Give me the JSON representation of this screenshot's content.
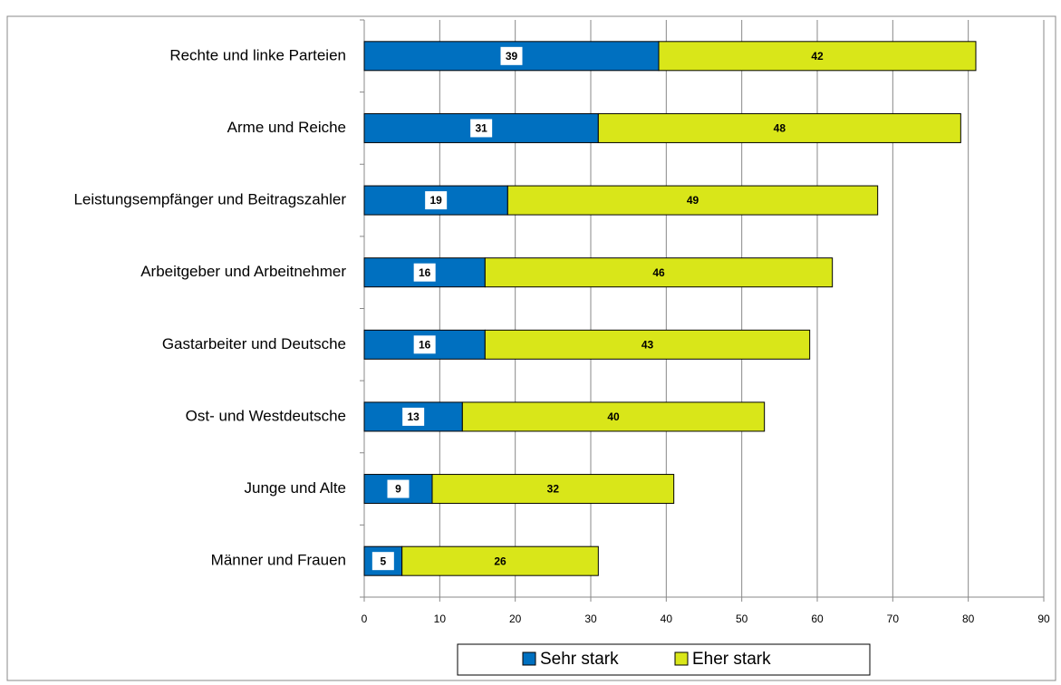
{
  "chart_data": {
    "type": "bar",
    "orientation": "horizontal",
    "stacked": true,
    "categories": [
      "Rechte und linke Parteien",
      "Arme und Reiche",
      "Leistungsempfänger und Beitragszahler",
      "Arbeitgeber und Arbeitnehmer",
      "Gastarbeiter und Deutsche",
      "Ost- und Westdeutsche",
      "Junge und Alte",
      "Männer und Frauen"
    ],
    "series": [
      {
        "name": "Sehr stark",
        "color": "#0070c0",
        "values": [
          39,
          31,
          19,
          16,
          16,
          13,
          9,
          5
        ]
      },
      {
        "name": "Eher stark",
        "color": "#d9e619",
        "values": [
          42,
          48,
          49,
          46,
          43,
          40,
          32,
          26
        ]
      }
    ],
    "xlim": [
      0,
      90
    ],
    "xticks": [
      0,
      10,
      20,
      30,
      40,
      50,
      60,
      70,
      80,
      90
    ],
    "grid": true,
    "legend": "bottom"
  }
}
